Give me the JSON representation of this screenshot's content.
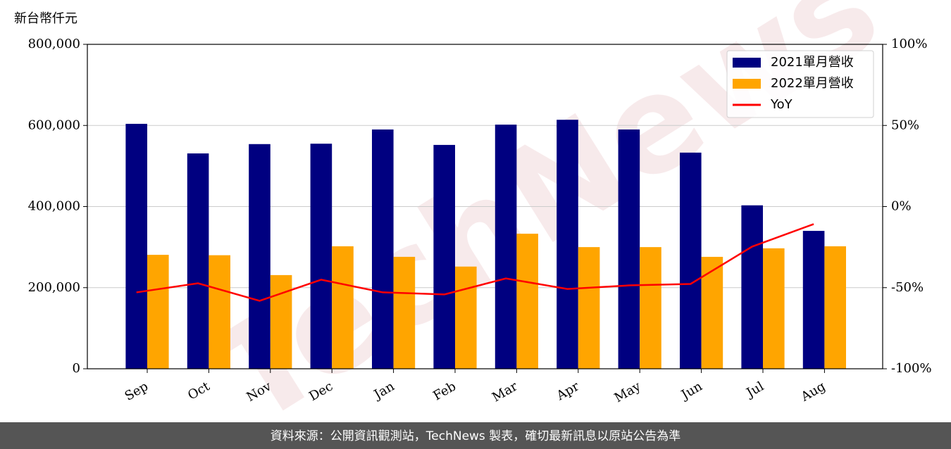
{
  "chart_data": {
    "type": "bar",
    "y_label": "新台幣仟元",
    "watermark": "TechNews",
    "footer": "資料來源：公開資訊觀測站，TechNews 製表，確切最新訊息以原站公告為準",
    "categories": [
      "Sep",
      "Oct",
      "Nov",
      "Dec",
      "Jan",
      "Feb",
      "Mar",
      "Apr",
      "May",
      "Jun",
      "Jul",
      "Aug"
    ],
    "series": [
      {
        "name": "2021單月營收",
        "color": "#000080",
        "values": [
          604000,
          531000,
          554000,
          555000,
          590000,
          552000,
          602000,
          614000,
          590000,
          533000,
          403000,
          340000
        ]
      },
      {
        "name": "2022單月營收",
        "color": "#ffa500",
        "values": [
          281000,
          280000,
          231000,
          302000,
          276000,
          252000,
          333000,
          300000,
          300000,
          276000,
          297000,
          302000
        ]
      },
      {
        "name": "YoY",
        "color": "#ff0000",
        "type": "line",
        "axis": "y2",
        "values": [
          -52.9,
          -47.3,
          -58.1,
          -45.1,
          -52.9,
          -54.2,
          -44.3,
          -50.8,
          -48.6,
          -47.7,
          -24.7,
          -10.8
        ]
      }
    ],
    "ylim": [
      0,
      800000
    ],
    "yticks": [
      0,
      {
        "value": 200000,
        "label": "200,000"
      },
      {
        "value": 400000,
        "label": "400,000"
      },
      {
        "value": 600000,
        "label": "600,000"
      },
      {
        "value": 800000,
        "label": "800,000"
      }
    ],
    "y2lim": [
      -100,
      100
    ],
    "y2ticks": [
      {
        "value": -100,
        "label": "-100%"
      },
      {
        "value": -50,
        "label": "-50%"
      },
      {
        "value": 0,
        "label": "0%"
      },
      {
        "value": 50,
        "label": "50%"
      },
      {
        "value": 100,
        "label": "100%"
      }
    ],
    "grid": true,
    "legend": "upper right"
  }
}
